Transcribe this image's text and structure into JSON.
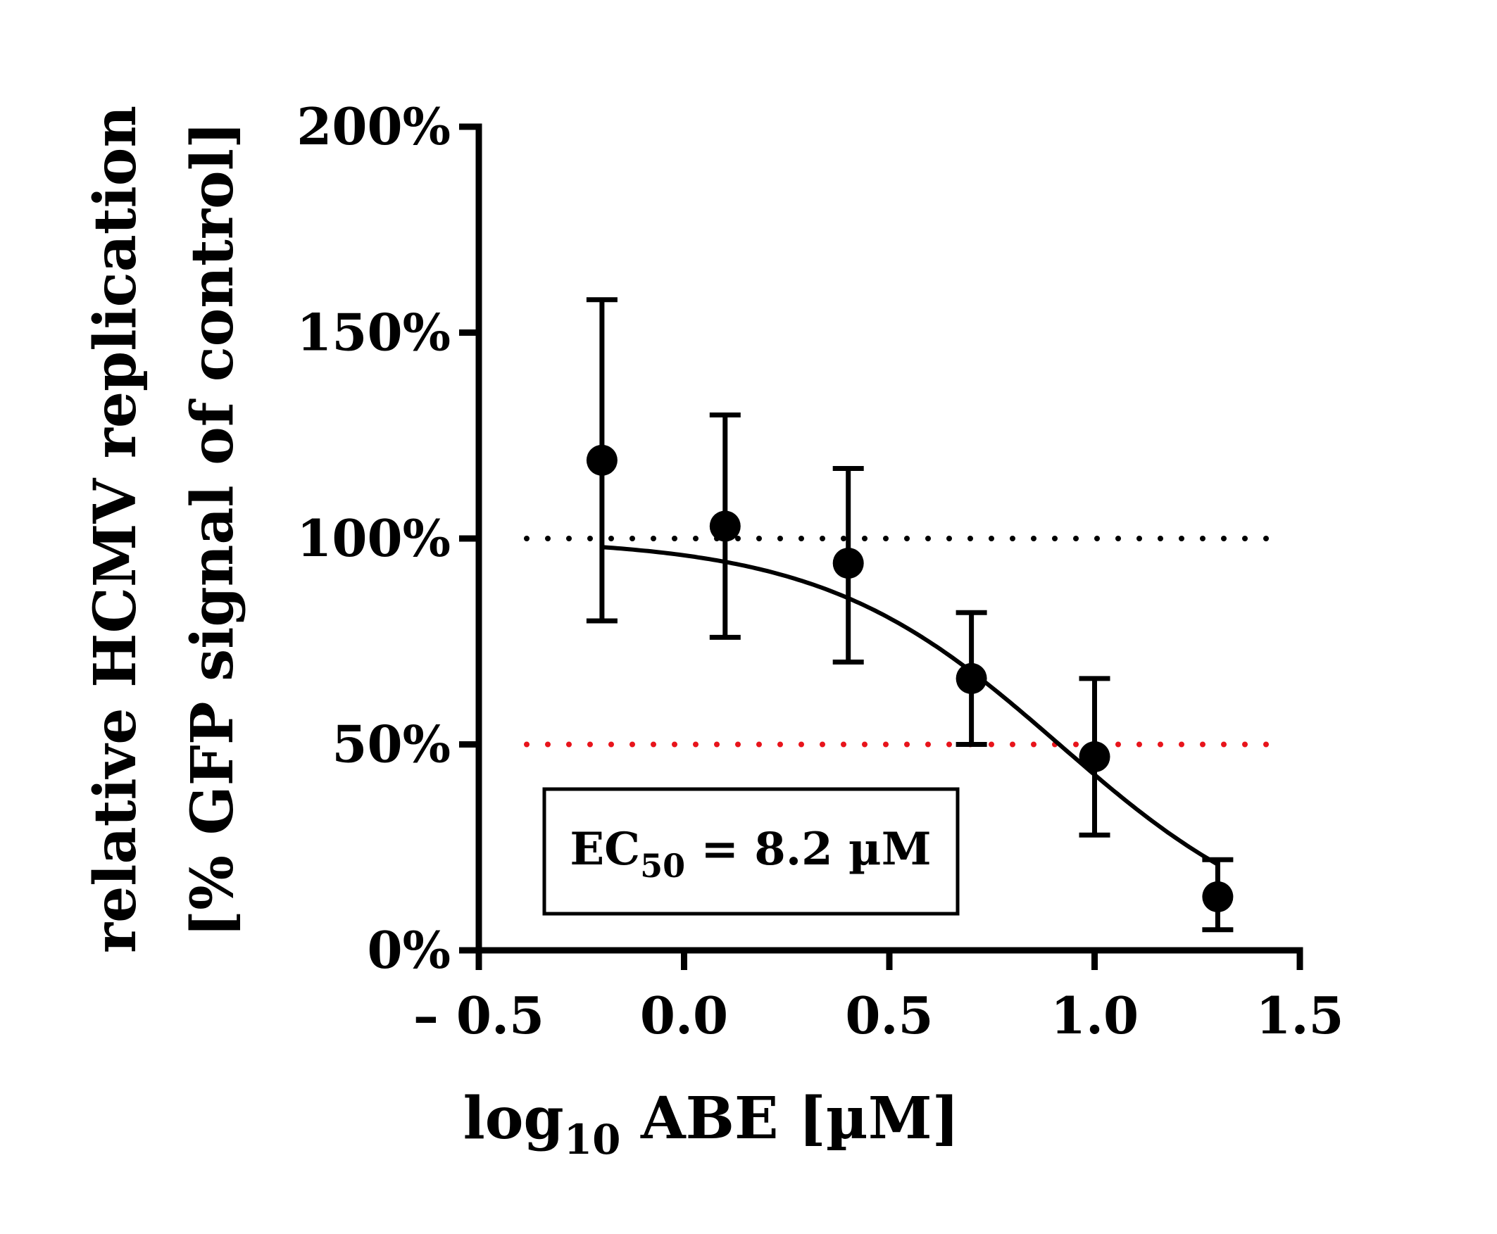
{
  "chart_data": {
    "type": "scatter",
    "title": "",
    "xlabel": {
      "main": "log",
      "sub": "10",
      "rest": " ABE [µM]"
    },
    "ylabel": {
      "line1": "relative HCMV replication",
      "line2": "[% GFP signal of control]"
    },
    "xlim": [
      -0.5,
      1.5
    ],
    "ylim": [
      0,
      200
    ],
    "x_ticks": [
      {
        "value": -0.5,
        "label": "– 0.5"
      },
      {
        "value": 0.0,
        "label": "0.0"
      },
      {
        "value": 0.5,
        "label": "0.5"
      },
      {
        "value": 1.0,
        "label": "1.0"
      },
      {
        "value": 1.5,
        "label": "1.5"
      }
    ],
    "y_ticks": [
      {
        "value": 0,
        "label": "0%"
      },
      {
        "value": 50,
        "label": "50%"
      },
      {
        "value": 100,
        "label": "100%"
      },
      {
        "value": 150,
        "label": "150%"
      },
      {
        "value": 200,
        "label": "200%"
      }
    ],
    "series": [
      {
        "name": "relative HCMV replication",
        "points": [
          {
            "x": -0.2,
            "y": 119,
            "err_low": 80,
            "err_high": 158
          },
          {
            "x": 0.1,
            "y": 103,
            "err_low": 76,
            "err_high": 130
          },
          {
            "x": 0.4,
            "y": 94,
            "err_low": 70,
            "err_high": 117
          },
          {
            "x": 0.7,
            "y": 66,
            "err_low": 50,
            "err_high": 82
          },
          {
            "x": 1.0,
            "y": 47,
            "err_low": 28,
            "err_high": 66
          },
          {
            "x": 1.3,
            "y": 13,
            "err_low": 5,
            "err_high": 22
          }
        ]
      }
    ],
    "fit_curve": {
      "top": 100,
      "bottom": 0,
      "log_ec50": 0.914,
      "hill_slope": 1.5,
      "x_start": -0.2,
      "x_end": 1.3
    },
    "reference_lines": [
      {
        "y": 100,
        "color": "#000000",
        "style": "dotted"
      },
      {
        "y": 50,
        "color": "#e8141b",
        "style": "dotted"
      }
    ],
    "annotation": {
      "prefix": "EC",
      "sub": "50",
      "rest": " = 8.2 µM"
    },
    "grid": false
  }
}
